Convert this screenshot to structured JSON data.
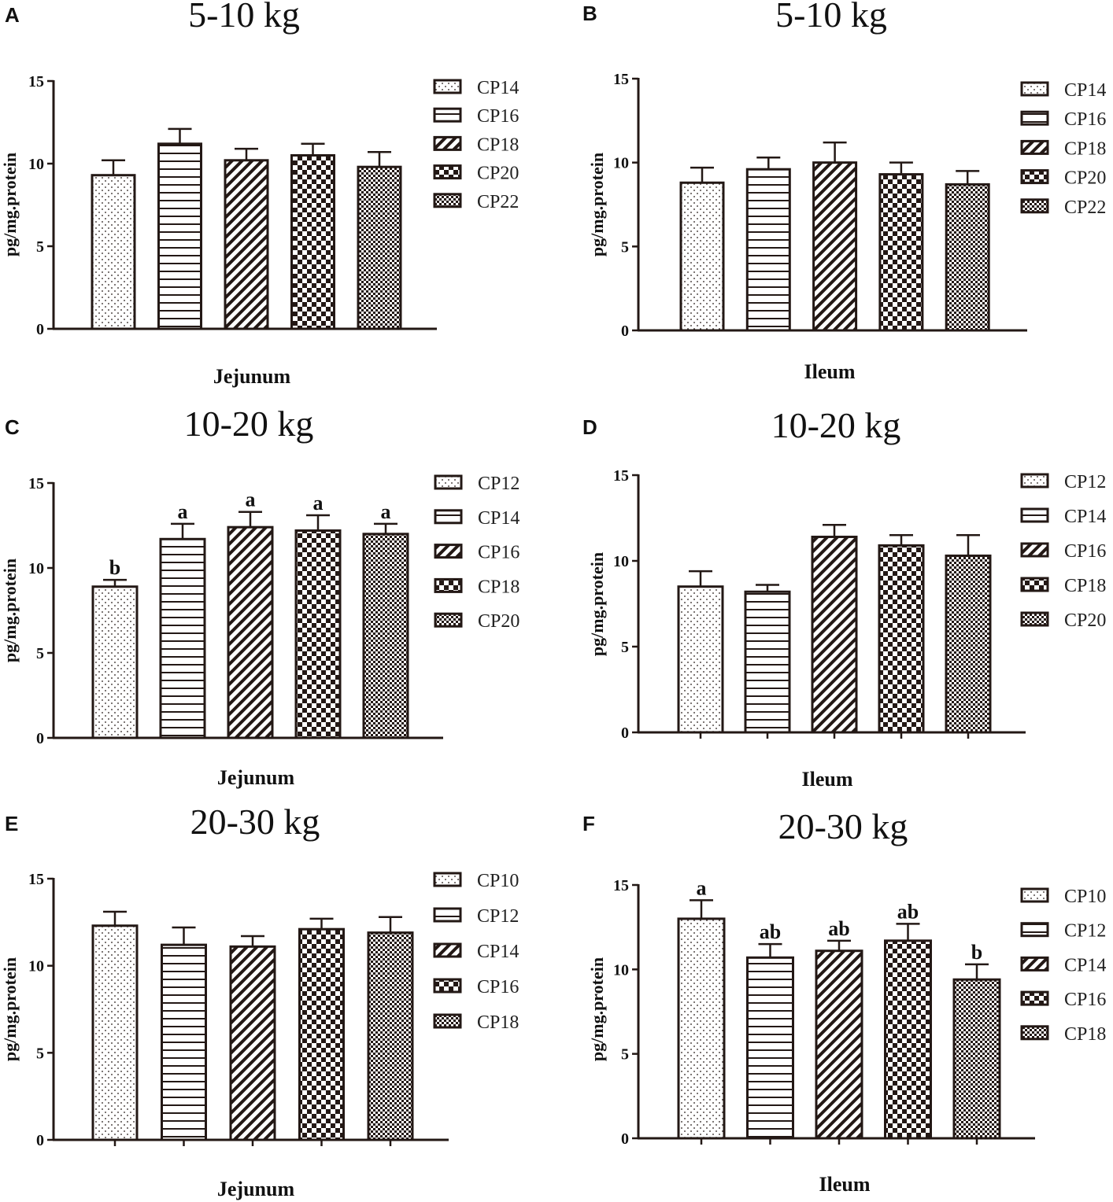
{
  "colors": {
    "ink": "#231815",
    "background": "#ffffff"
  },
  "chart_data": [
    {
      "letter": "A",
      "type": "bar",
      "title": "5-10 kg",
      "xlabel": "Jejunum",
      "ylabel": "pg/mg.protein",
      "ylim": [
        0,
        15
      ],
      "yticks": [
        "0",
        "5",
        "10",
        "15"
      ],
      "categories": [
        "CP14",
        "CP16",
        "CP18",
        "CP20",
        "CP22"
      ],
      "values": [
        9.3,
        11.2,
        10.2,
        10.5,
        9.8
      ],
      "errors": [
        0.9,
        0.9,
        0.7,
        0.7,
        0.9
      ],
      "letters": [
        "",
        "",
        "",
        "",
        ""
      ],
      "x_ticks": false
    },
    {
      "letter": "B",
      "type": "bar",
      "title": "5-10 kg",
      "xlabel": "Ileum",
      "ylabel": "pg/mg.protein",
      "ylim": [
        0,
        15
      ],
      "yticks": [
        "0",
        "5",
        "10",
        "15"
      ],
      "categories": [
        "CP14",
        "CP16",
        "CP18",
        "CP20",
        "CP22"
      ],
      "values": [
        8.8,
        9.6,
        10.0,
        9.3,
        8.7
      ],
      "errors": [
        0.9,
        0.7,
        1.2,
        0.7,
        0.8
      ],
      "letters": [
        "",
        "",
        "",
        "",
        ""
      ],
      "x_ticks": false
    },
    {
      "letter": "C",
      "type": "bar",
      "title": "10-20 kg",
      "xlabel": "Jejunum",
      "ylabel": "pg/mg.protein",
      "ylim": [
        0,
        15
      ],
      "yticks": [
        "0",
        "5",
        "10",
        "15"
      ],
      "categories": [
        "CP12",
        "CP14",
        "CP16",
        "CP18",
        "CP20"
      ],
      "values": [
        8.9,
        11.7,
        12.4,
        12.2,
        12.0
      ],
      "errors": [
        0.4,
        0.9,
        0.9,
        0.9,
        0.6
      ],
      "letters": [
        "b",
        "a",
        "a",
        "a",
        "a"
      ],
      "x_ticks": false
    },
    {
      "letter": "D",
      "type": "bar",
      "title": "10-20 kg",
      "xlabel": "Ileum",
      "ylabel": "pg/mg.protein",
      "ylim": [
        0,
        15
      ],
      "yticks": [
        "0",
        "5",
        "10",
        "15"
      ],
      "categories": [
        "CP12",
        "CP14",
        "CP16",
        "CP18",
        "CP20"
      ],
      "values": [
        8.5,
        8.2,
        11.4,
        10.9,
        10.3
      ],
      "errors": [
        0.9,
        0.4,
        0.7,
        0.6,
        1.2
      ],
      "letters": [
        "",
        "",
        "",
        "",
        ""
      ],
      "x_ticks": true
    },
    {
      "letter": "E",
      "type": "bar",
      "title": "20-30 kg",
      "xlabel": "Jejunum",
      "ylabel": "pg/mg.protein",
      "ylim": [
        0,
        15
      ],
      "yticks": [
        "0",
        "5",
        "10",
        "15"
      ],
      "categories": [
        "CP10",
        "CP12",
        "CP14",
        "CP16",
        "CP18"
      ],
      "values": [
        12.3,
        11.2,
        11.1,
        12.1,
        11.9
      ],
      "errors": [
        0.8,
        1.0,
        0.6,
        0.6,
        0.9
      ],
      "letters": [
        "",
        "",
        "",
        "",
        ""
      ],
      "x_ticks": true
    },
    {
      "letter": "F",
      "type": "bar",
      "title": "20-30 kg",
      "xlabel": "Ileum",
      "ylabel": "pg/mg.protein",
      "ylim": [
        0,
        15
      ],
      "yticks": [
        "0",
        "5",
        "10",
        "15"
      ],
      "categories": [
        "CP10",
        "CP12",
        "CP14",
        "CP16",
        "CP18"
      ],
      "values": [
        13.0,
        10.7,
        11.1,
        11.7,
        9.4
      ],
      "errors": [
        1.1,
        0.8,
        0.6,
        1.0,
        0.9
      ],
      "letters": [
        "a",
        "ab",
        "ab",
        "ab",
        "b"
      ],
      "x_ticks": true
    }
  ]
}
